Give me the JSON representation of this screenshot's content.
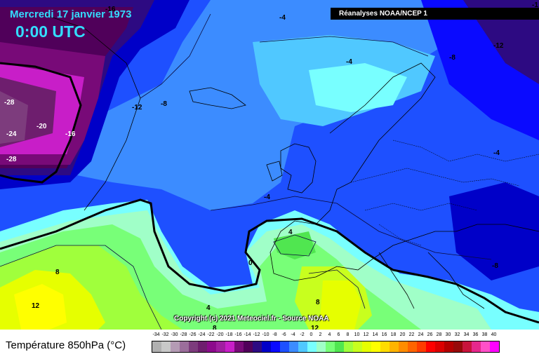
{
  "header": {
    "date": "Mercredi 17 janvier 1973",
    "time": "0:00 UTC",
    "source": "Réanalyses NOAA/NCEP 1"
  },
  "footer": {
    "copyright": "Copyright (c) 2021 Meteociel.fr - Source NOAA"
  },
  "legend": {
    "title": "Température 850hPa (°C)",
    "ticks": [
      "-34",
      "-32",
      "-30",
      "-28",
      "-26",
      "-24",
      "-22",
      "-20",
      "-18",
      "-16",
      "-14",
      "-12",
      "-10",
      "-8",
      "-6",
      "-4",
      "-2",
      "0",
      "2",
      "4",
      "6",
      "8",
      "10",
      "12",
      "14",
      "16",
      "18",
      "20",
      "22",
      "24",
      "26",
      "28",
      "30",
      "32",
      "34",
      "36",
      "38",
      "40"
    ],
    "colors": [
      "#b0b0b0",
      "#c8c8c8",
      "#b49bb4",
      "#9b6e9b",
      "#7d3c7d",
      "#6e1e6e",
      "#8c0a8c",
      "#a01ea0",
      "#c81ec8",
      "#780a78",
      "#50005a",
      "#2d0a82",
      "#0000c8",
      "#0a0aff",
      "#1e50ff",
      "#3c8cff",
      "#50c8ff",
      "#78ffff",
      "#a0ffc8",
      "#78ff78",
      "#50e650",
      "#a0ff3c",
      "#c8ff1e",
      "#e6ff00",
      "#ffff00",
      "#ffdc00",
      "#ffb400",
      "#ff8c00",
      "#ff6400",
      "#ff3c00",
      "#ff0000",
      "#dc0000",
      "#b40000",
      "#960a0a",
      "#c8143c",
      "#e6288c",
      "#ff50c8",
      "#ff00ff"
    ]
  },
  "isotherm_labels": [
    "-4",
    "-4",
    "-8",
    "-12",
    "-1",
    "-16",
    "-12",
    "-8",
    "-28",
    "-20",
    "-16",
    "-24",
    "-28",
    "-4",
    "-4",
    "-8",
    "4",
    "0",
    "8",
    "12",
    "4",
    "8",
    "8",
    "12"
  ]
}
